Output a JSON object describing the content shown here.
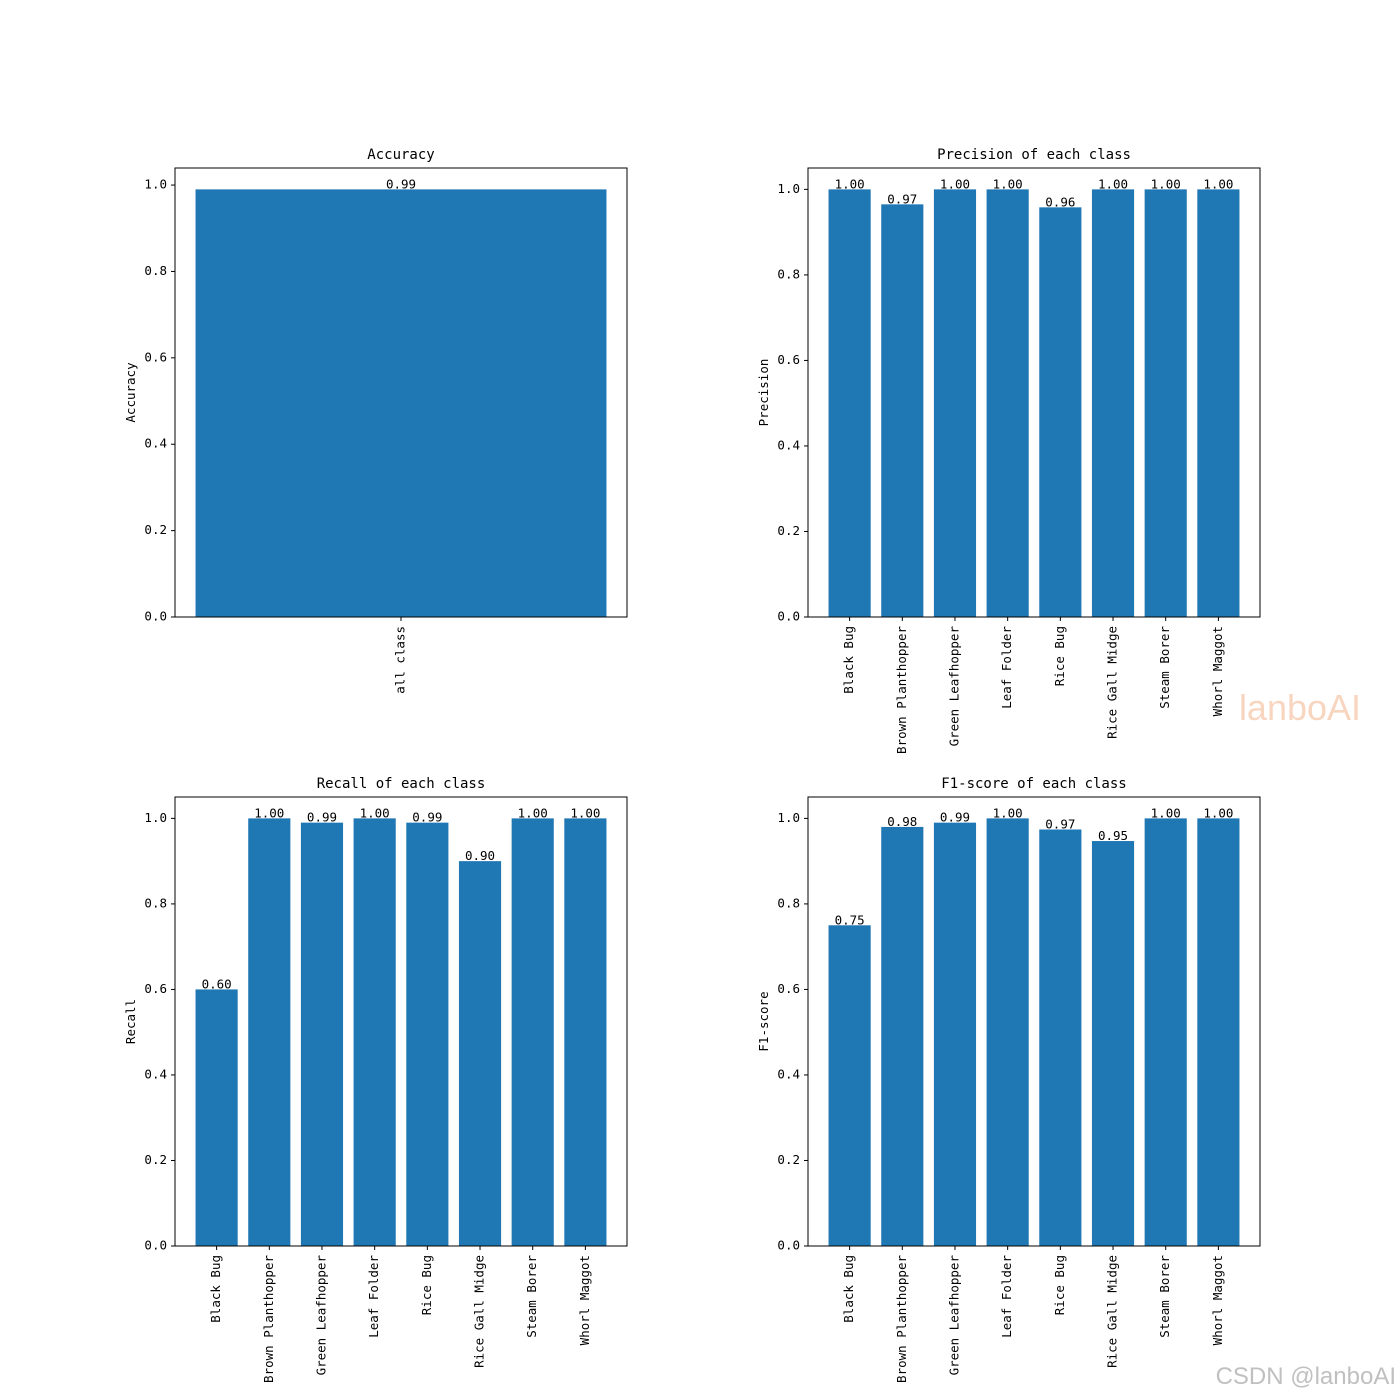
{
  "chart_data": [
    {
      "type": "bar",
      "title": "Accuracy",
      "ylabel": "Accuracy",
      "categories": [
        "all class"
      ],
      "values": [
        0.99
      ],
      "value_labels": [
        "0.99"
      ],
      "color": "#1f77b4",
      "ylim": [
        0,
        1.0395
      ],
      "yticks": [
        {
          "value": 0,
          "label": "0.0"
        },
        0.2,
        0.4,
        0.6,
        0.8,
        {
          "value": 1,
          "label": "1.0"
        }
      ]
    },
    {
      "type": "bar",
      "title": "Precision of each class",
      "ylabel": "Precision",
      "categories": [
        "Black Bug",
        "Brown Planthopper",
        "Green Leafhopper",
        "Leaf Folder",
        "Rice Bug",
        "Rice Gall Midge",
        "Steam Borer",
        "Whorl Maggot"
      ],
      "values": [
        1,
        0.965,
        1,
        1,
        0.958,
        1,
        1,
        1
      ],
      "value_labels": [
        "1.00",
        "0.97",
        "1.00",
        "1.00",
        "0.96",
        "1.00",
        "1.00",
        "1.00"
      ],
      "color": "#1f77b4",
      "ylim": [
        0,
        1.05
      ],
      "yticks": [
        {
          "value": 0,
          "label": "0.0"
        },
        0.2,
        0.4,
        0.6,
        0.8,
        {
          "value": 1,
          "label": "1.0"
        }
      ]
    },
    {
      "type": "bar",
      "title": "Recall of each class",
      "ylabel": "Recall",
      "categories": [
        "Black Bug",
        "Brown Planthopper",
        "Green Leafhopper",
        "Leaf Folder",
        "Rice Bug",
        "Rice Gall Midge",
        "Steam Borer",
        "Whorl Maggot"
      ],
      "values": [
        0.6,
        1,
        0.99,
        1,
        0.99,
        0.9,
        1,
        1
      ],
      "value_labels": [
        "0.60",
        "1.00",
        "0.99",
        "1.00",
        "0.99",
        "0.90",
        "1.00",
        "1.00"
      ],
      "color": "#1f77b4",
      "ylim": [
        0,
        1.05
      ],
      "yticks": [
        {
          "value": 0,
          "label": "0.0"
        },
        0.2,
        0.4,
        0.6,
        0.8,
        {
          "value": 1,
          "label": "1.0"
        }
      ]
    },
    {
      "type": "bar",
      "title": "F1-score of each class",
      "ylabel": "F1-score",
      "categories": [
        "Black Bug",
        "Brown Planthopper",
        "Green Leafhopper",
        "Leaf Folder",
        "Rice Bug",
        "Rice Gall Midge",
        "Steam Borer",
        "Whorl Maggot"
      ],
      "values": [
        0.75,
        0.98,
        0.99,
        1,
        0.974,
        0.947,
        1,
        1
      ],
      "value_labels": [
        "0.75",
        "0.98",
        "0.99",
        "1.00",
        "0.97",
        "0.95",
        "1.00",
        "1.00"
      ],
      "color": "#1f77b4",
      "ylim": [
        0,
        1.05
      ],
      "yticks": [
        {
          "value": 0,
          "label": "0.0"
        },
        0.2,
        0.4,
        0.6,
        0.8,
        {
          "value": 1,
          "label": "1.0"
        }
      ]
    }
  ],
  "watermarks": [
    "lanboAI",
    "CSDN @lanboAI"
  ]
}
